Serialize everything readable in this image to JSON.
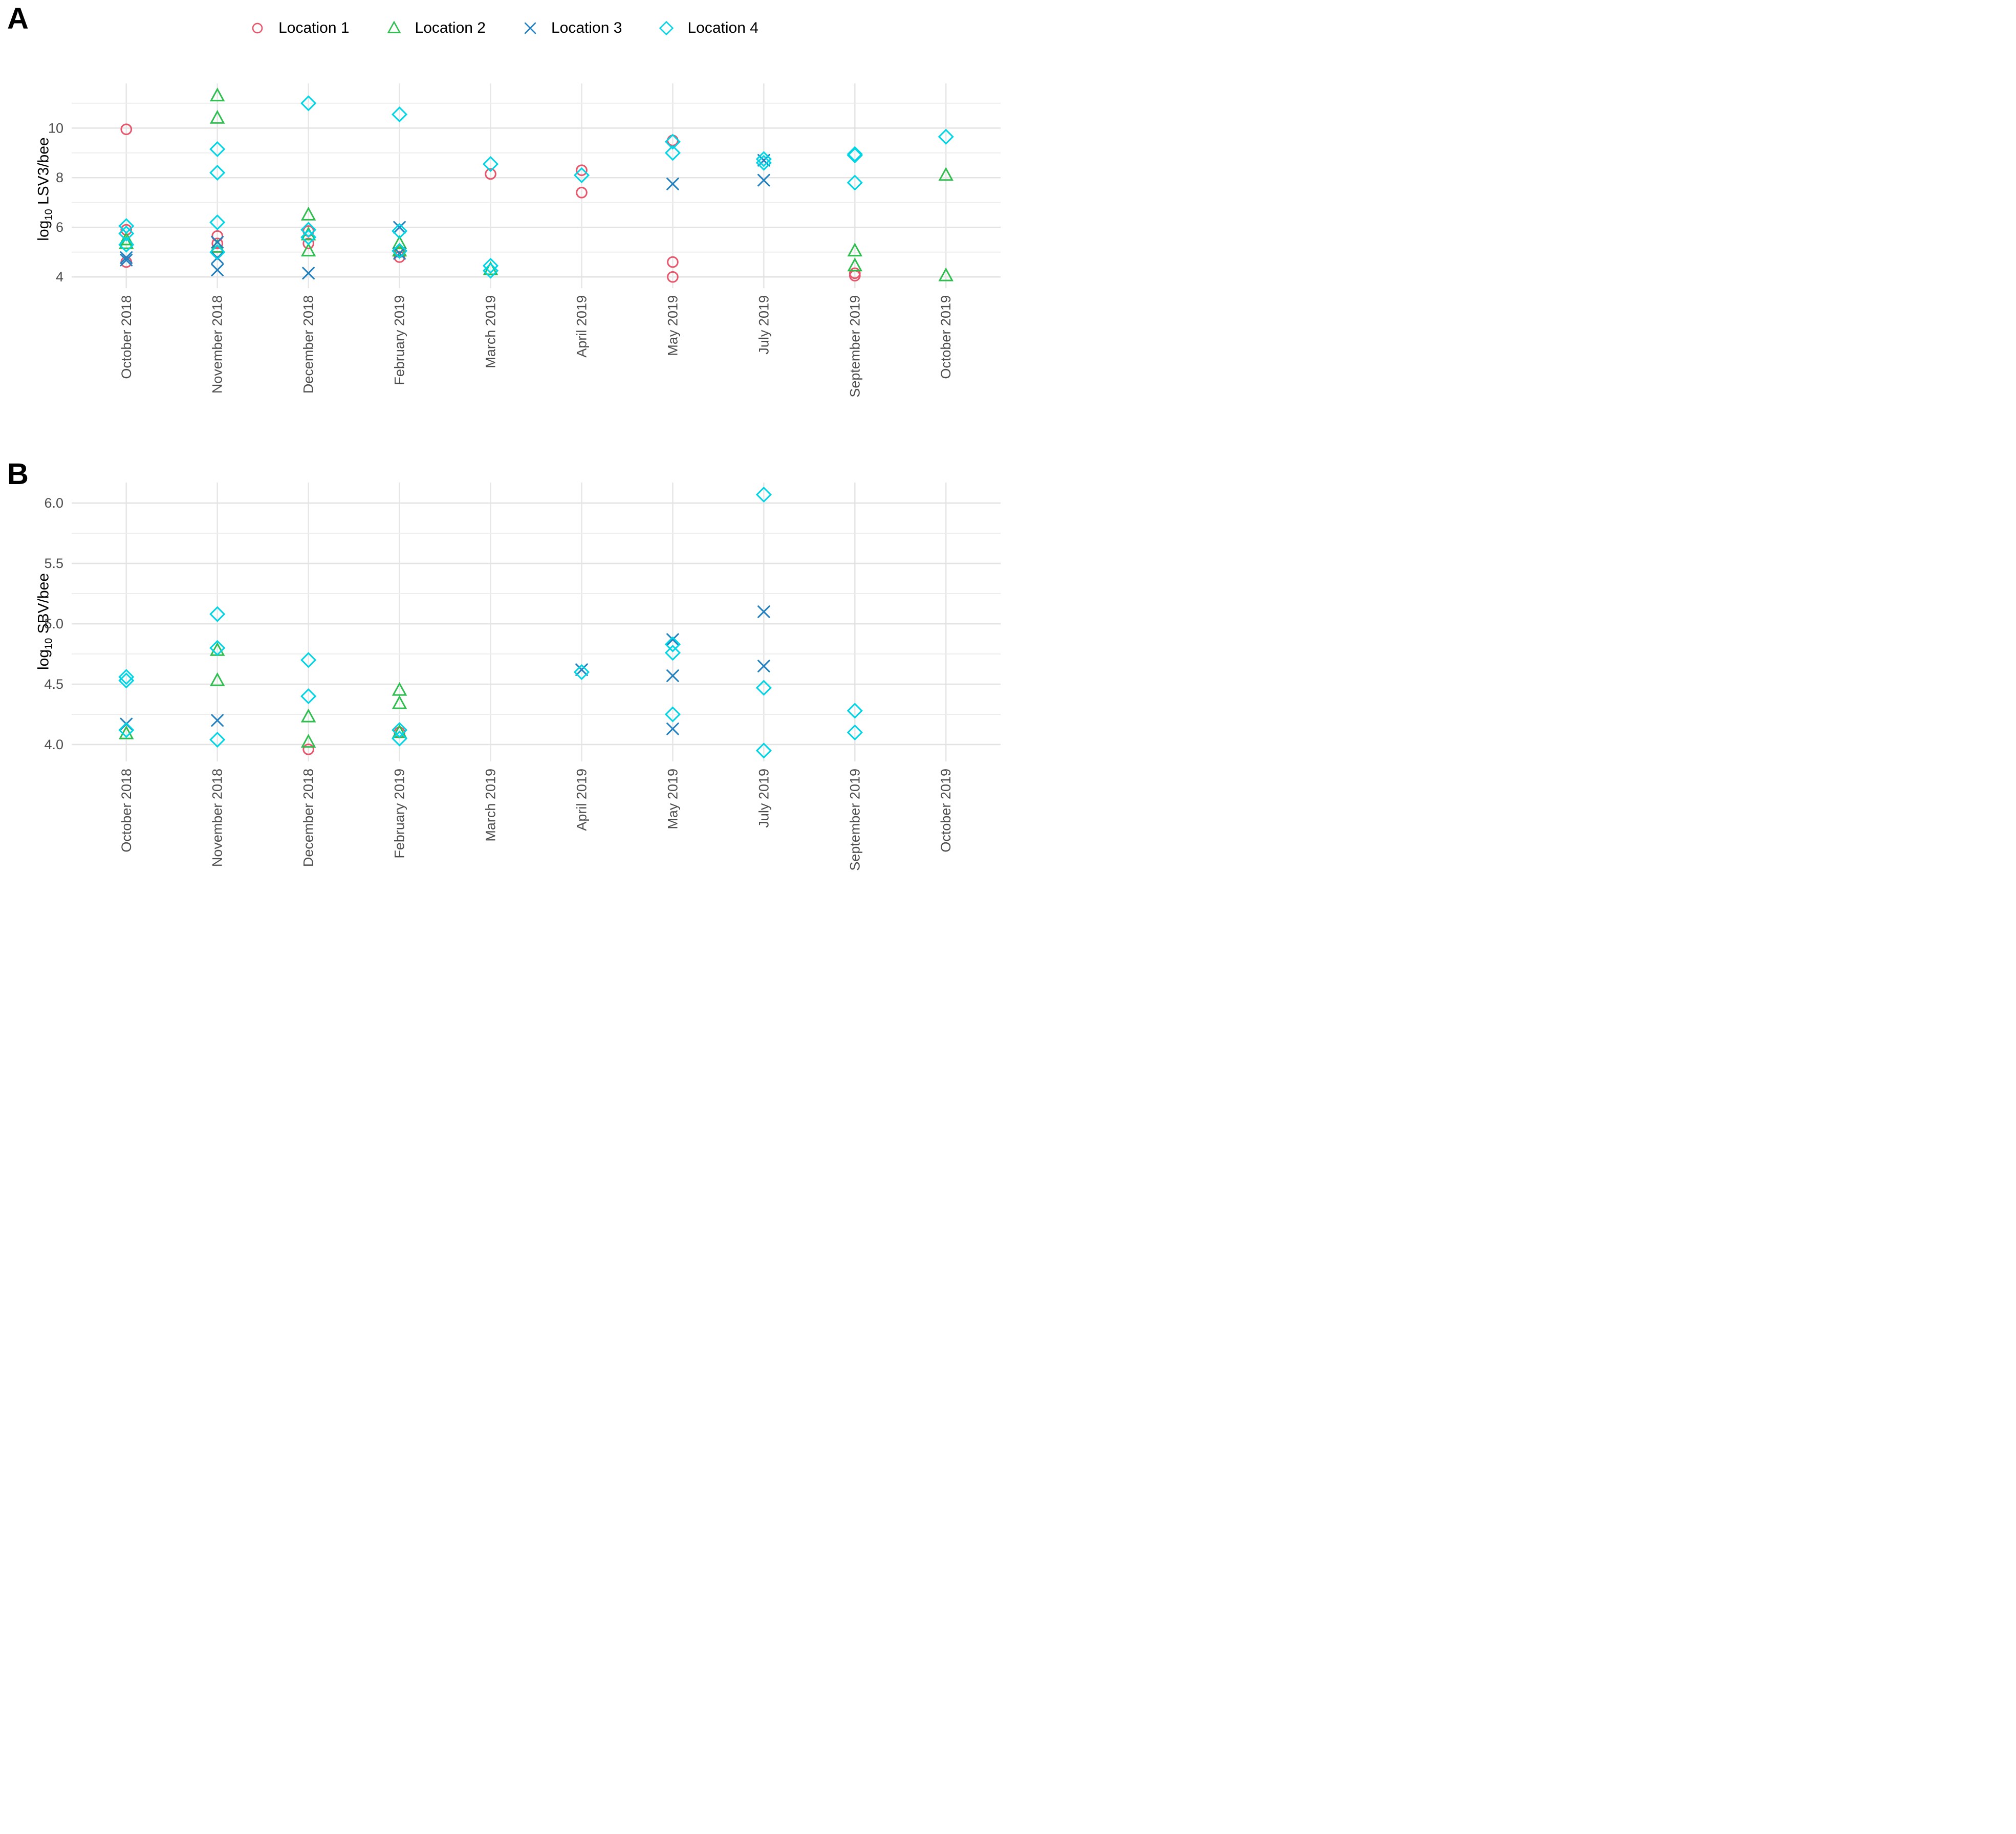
{
  "figure": {
    "panel_a_letter": "A",
    "panel_b_letter": "B"
  },
  "legend": {
    "items": [
      {
        "label": "Location 1",
        "marker": "circle",
        "color": "#E8546A"
      },
      {
        "label": "Location 2",
        "marker": "triangle",
        "color": "#2FBE4F"
      },
      {
        "label": "Location 3",
        "marker": "x",
        "color": "#2180C0"
      },
      {
        "label": "Location 4",
        "marker": "diamond",
        "color": "#00D5E6"
      }
    ]
  },
  "chart_data": [
    {
      "type": "scatter",
      "panel": "A",
      "title": "",
      "ylabel": {
        "prefix": "log",
        "sub": "10",
        "suffix": " LSV3/bee"
      },
      "xlabel": "",
      "categories": [
        "October 2018",
        "November 2018",
        "December 2018",
        "February 2019",
        "March 2019",
        "April 2019",
        "May 2019",
        "July 2019",
        "September 2019",
        "October 2019"
      ],
      "ylim": [
        3.55,
        11.8
      ],
      "y_axis": {
        "ticks": [
          {
            "v": 4,
            "label": "4"
          },
          {
            "v": 6,
            "label": "6"
          },
          {
            "v": 8,
            "label": "8"
          },
          {
            "v": 10,
            "label": "10"
          }
        ],
        "minor_gridlines": [
          5,
          7,
          9,
          11
        ],
        "grid": true,
        "legend_position": "top"
      },
      "series": [
        {
          "name": "Location 1",
          "marker": "circle",
          "color": "#E8546A",
          "points": [
            [
              0,
              9.95
            ],
            [
              0,
              5.9
            ],
            [
              0,
              4.6
            ],
            [
              1,
              5.65
            ],
            [
              1,
              5.35
            ],
            [
              1,
              5.0
            ],
            [
              2,
              5.85
            ],
            [
              2,
              5.35
            ],
            [
              3,
              5.0
            ],
            [
              3,
              4.8
            ],
            [
              4,
              8.15
            ],
            [
              5,
              8.3
            ],
            [
              5,
              7.4
            ],
            [
              6,
              9.5
            ],
            [
              6,
              4.6
            ],
            [
              6,
              4.0
            ],
            [
              8,
              4.15
            ],
            [
              8,
              4.05
            ]
          ]
        },
        {
          "name": "Location 2",
          "marker": "triangle",
          "color": "#2FBE4F",
          "points": [
            [
              0,
              5.5
            ],
            [
              0,
              5.35
            ],
            [
              1,
              11.3
            ],
            [
              1,
              10.4
            ],
            [
              1,
              5.2
            ],
            [
              2,
              6.5
            ],
            [
              2,
              5.7
            ],
            [
              2,
              5.05
            ],
            [
              3,
              5.35
            ],
            [
              3,
              5.05
            ],
            [
              4,
              4.3
            ],
            [
              8,
              5.05
            ],
            [
              8,
              4.45
            ],
            [
              9,
              8.1
            ],
            [
              9,
              4.05
            ]
          ]
        },
        {
          "name": "Location 3",
          "marker": "x",
          "color": "#2180C0",
          "points": [
            [
              0,
              4.78
            ],
            [
              0,
              4.68
            ],
            [
              1,
              5.4
            ],
            [
              1,
              4.77
            ],
            [
              1,
              4.28
            ],
            [
              2,
              4.15
            ],
            [
              3,
              6.0
            ],
            [
              3,
              4.95
            ],
            [
              6,
              7.75
            ],
            [
              7,
              8.7
            ],
            [
              7,
              7.9
            ]
          ]
        },
        {
          "name": "Location 4",
          "marker": "diamond",
          "color": "#00D5E6",
          "points": [
            [
              0,
              6.05
            ],
            [
              0,
              5.75
            ],
            [
              0,
              5.3
            ],
            [
              1,
              9.15
            ],
            [
              1,
              8.2
            ],
            [
              1,
              6.2
            ],
            [
              1,
              5.0
            ],
            [
              2,
              11.0
            ],
            [
              2,
              5.9
            ],
            [
              2,
              5.6
            ],
            [
              3,
              10.55
            ],
            [
              3,
              5.85
            ],
            [
              3,
              5.05
            ],
            [
              4,
              8.55
            ],
            [
              4,
              4.45
            ],
            [
              4,
              4.25
            ],
            [
              5,
              8.1
            ],
            [
              6,
              9.45
            ],
            [
              6,
              9.0
            ],
            [
              7,
              8.75
            ],
            [
              7,
              8.6
            ],
            [
              8,
              8.95
            ],
            [
              8,
              8.9
            ],
            [
              8,
              7.8
            ],
            [
              9,
              9.65
            ]
          ]
        }
      ]
    },
    {
      "type": "scatter",
      "panel": "B",
      "title": "",
      "ylabel": {
        "prefix": "log",
        "sub": "10",
        "suffix": " SBV/bee"
      },
      "xlabel": "",
      "categories": [
        "October 2018",
        "November 2018",
        "December 2018",
        "February 2019",
        "March 2019",
        "April 2019",
        "May 2019",
        "July 2019",
        "September 2019",
        "October 2019"
      ],
      "ylim": [
        3.86,
        6.17
      ],
      "y_axis": {
        "ticks": [
          {
            "v": 4.0,
            "label": "4.0"
          },
          {
            "v": 4.5,
            "label": "4.5"
          },
          {
            "v": 5.0,
            "label": "5.0"
          },
          {
            "v": 5.5,
            "label": "5.5"
          },
          {
            "v": 6.0,
            "label": "6.0"
          }
        ],
        "minor_gridlines": [
          4.25,
          4.75,
          5.25,
          5.75
        ],
        "grid": true,
        "legend_position": "none"
      },
      "series": [
        {
          "name": "Location 1",
          "marker": "circle",
          "color": "#E8546A",
          "points": [
            [
              2,
              3.96
            ],
            [
              3,
              4.1
            ]
          ]
        },
        {
          "name": "Location 2",
          "marker": "triangle",
          "color": "#2FBE4F",
          "points": [
            [
              0,
              4.09
            ],
            [
              1,
              4.78
            ],
            [
              1,
              4.53
            ],
            [
              2,
              4.23
            ],
            [
              2,
              4.02
            ],
            [
              3,
              4.45
            ],
            [
              3,
              4.34
            ],
            [
              3,
              4.1
            ]
          ]
        },
        {
          "name": "Location 3",
          "marker": "x",
          "color": "#2180C0",
          "points": [
            [
              0,
              4.17
            ],
            [
              1,
              4.2
            ],
            [
              5,
              4.62
            ],
            [
              6,
              4.87
            ],
            [
              6,
              4.57
            ],
            [
              6,
              4.13
            ],
            [
              7,
              5.1
            ],
            [
              7,
              4.65
            ]
          ]
        },
        {
          "name": "Location 4",
          "marker": "diamond",
          "color": "#00D5E6",
          "points": [
            [
              0,
              4.56
            ],
            [
              0,
              4.53
            ],
            [
              0,
              4.12
            ],
            [
              1,
              5.08
            ],
            [
              1,
              4.8
            ],
            [
              1,
              4.04
            ],
            [
              2,
              4.7
            ],
            [
              2,
              4.4
            ],
            [
              3,
              4.12
            ],
            [
              3,
              4.05
            ],
            [
              5,
              4.6
            ],
            [
              6,
              4.83
            ],
            [
              6,
              4.76
            ],
            [
              6,
              4.25
            ],
            [
              7,
              6.07
            ],
            [
              7,
              4.47
            ],
            [
              7,
              3.95
            ],
            [
              8,
              4.28
            ],
            [
              8,
              4.1
            ]
          ]
        }
      ]
    }
  ]
}
